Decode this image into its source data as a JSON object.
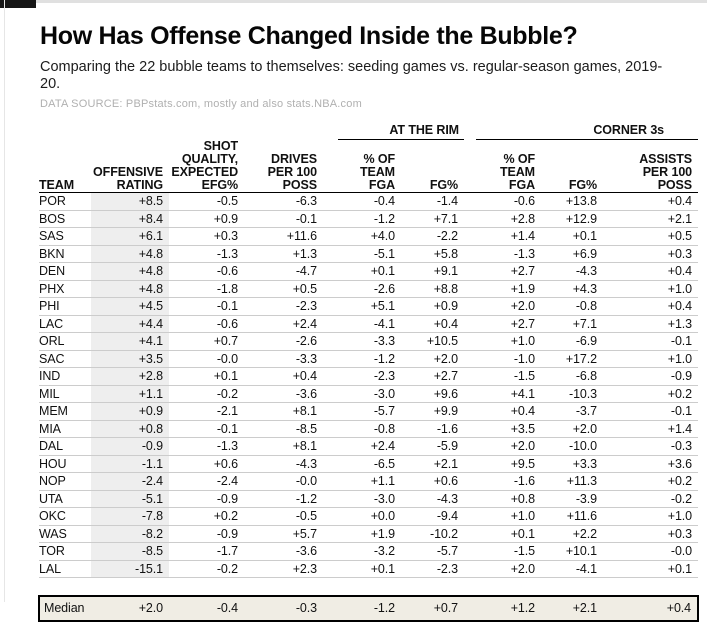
{
  "page": {
    "title": "How Has Offense Changed Inside the Bubble?",
    "subtitle": "Comparing the 22 bubble teams to themselves: seeding games vs. regular-season games, 2019-20.",
    "source": "DATA SOURCE: PBPstats.com, mostly and also stats.NBA.com"
  },
  "colors": {
    "shaded_column_bg": "#eeeeee",
    "median_row_bg": "#f0ede4",
    "row_divider": "#cccccc",
    "header_rule": "#000000",
    "source_text_gray": "#b0b0b0"
  },
  "chart_data": {
    "type": "table",
    "title": "How Has Offense Changed Inside the Bubble?",
    "group_headers": [
      {
        "label": "AT THE RIM",
        "span": [
          5,
          6
        ]
      },
      {
        "label": "CORNER 3s",
        "span": [
          7,
          9
        ]
      }
    ],
    "columns": [
      {
        "id": "team",
        "header_lines": [
          "TEAM"
        ],
        "align": "left"
      },
      {
        "id": "offensive-rating",
        "header_lines": [
          "OFFENSIVE",
          "RATING"
        ],
        "align": "right",
        "shaded": true
      },
      {
        "id": "shot-quality-expected-efg-pct",
        "header_lines": [
          "SHOT",
          "QUALITY,",
          "EXPECTED",
          "EFG%"
        ],
        "align": "right"
      },
      {
        "id": "drives-per-100-poss",
        "header_lines": [
          "DRIVES",
          "PER 100",
          "POSS"
        ],
        "align": "right"
      },
      {
        "id": "rim-pct-of-team-fga",
        "header_lines": [
          "% OF",
          "TEAM",
          "FGA"
        ],
        "align": "right"
      },
      {
        "id": "rim-fg-pct",
        "header_lines": [
          "FG%"
        ],
        "align": "right"
      },
      {
        "id": "corner-pct-of-team-fga",
        "header_lines": [
          "% OF",
          "TEAM",
          "FGA"
        ],
        "align": "right"
      },
      {
        "id": "corner-fg-pct",
        "header_lines": [
          "FG%"
        ],
        "align": "right"
      },
      {
        "id": "assists-per-100-poss",
        "header_lines": [
          "ASSISTS",
          "PER 100",
          "POSS"
        ],
        "align": "right"
      }
    ],
    "rows": [
      [
        "POR",
        "+8.5",
        "-0.5",
        "-6.3",
        "-0.4",
        "-1.4",
        "-0.6",
        "+13.8",
        "+0.4"
      ],
      [
        "BOS",
        "+8.4",
        "+0.9",
        "-0.1",
        "-1.2",
        "+7.1",
        "+2.8",
        "+12.9",
        "+2.1"
      ],
      [
        "SAS",
        "+6.1",
        "+0.3",
        "+11.6",
        "+4.0",
        "-2.2",
        "+1.4",
        "+0.1",
        "+0.5"
      ],
      [
        "BKN",
        "+4.8",
        "-1.3",
        "+1.3",
        "-5.1",
        "+5.8",
        "-1.3",
        "+6.9",
        "+0.3"
      ],
      [
        "DEN",
        "+4.8",
        "-0.6",
        "-4.7",
        "+0.1",
        "+9.1",
        "+2.7",
        "-4.3",
        "+0.4"
      ],
      [
        "PHX",
        "+4.8",
        "-1.8",
        "+0.5",
        "-2.6",
        "+8.8",
        "+1.9",
        "+4.3",
        "+1.0"
      ],
      [
        "PHI",
        "+4.5",
        "-0.1",
        "-2.3",
        "+5.1",
        "+0.9",
        "+2.0",
        "-0.8",
        "+0.4"
      ],
      [
        "LAC",
        "+4.4",
        "-0.6",
        "+2.4",
        "-4.1",
        "+0.4",
        "+2.7",
        "+7.1",
        "+1.3"
      ],
      [
        "ORL",
        "+4.1",
        "+0.7",
        "-2.6",
        "-3.3",
        "+10.5",
        "+1.0",
        "-6.9",
        "-0.1"
      ],
      [
        "SAC",
        "+3.5",
        "-0.0",
        "-3.3",
        "-1.2",
        "+2.0",
        "-1.0",
        "+17.2",
        "+1.0"
      ],
      [
        "IND",
        "+2.8",
        "+0.1",
        "+0.4",
        "-2.3",
        "+2.7",
        "-1.5",
        "-6.8",
        "-0.9"
      ],
      [
        "MIL",
        "+1.1",
        "-0.2",
        "-3.6",
        "-3.0",
        "+9.6",
        "+4.1",
        "-10.3",
        "+0.2"
      ],
      [
        "MEM",
        "+0.9",
        "-2.1",
        "+8.1",
        "-5.7",
        "+9.9",
        "+0.4",
        "-3.7",
        "-0.1"
      ],
      [
        "MIA",
        "+0.8",
        "-0.1",
        "-8.5",
        "-0.8",
        "-1.6",
        "+3.5",
        "+2.0",
        "+1.4"
      ],
      [
        "DAL",
        "-0.9",
        "-1.3",
        "+8.1",
        "+2.4",
        "-5.9",
        "+2.0",
        "-10.0",
        "-0.3"
      ],
      [
        "HOU",
        "-1.1",
        "+0.6",
        "-4.3",
        "-6.5",
        "+2.1",
        "+9.5",
        "+3.3",
        "+3.6"
      ],
      [
        "NOP",
        "-2.4",
        "-2.4",
        "-0.0",
        "+1.1",
        "+0.6",
        "-1.6",
        "+11.3",
        "+0.2"
      ],
      [
        "UTA",
        "-5.1",
        "-0.9",
        "-1.2",
        "-3.0",
        "-4.3",
        "+0.8",
        "-3.9",
        "-0.2"
      ],
      [
        "OKC",
        "-7.8",
        "+0.2",
        "-0.5",
        "+0.0",
        "-9.4",
        "+1.0",
        "+11.6",
        "+1.0"
      ],
      [
        "WAS",
        "-8.2",
        "-0.9",
        "+5.7",
        "+1.9",
        "-10.2",
        "+0.1",
        "+2.2",
        "+0.3"
      ],
      [
        "TOR",
        "-8.5",
        "-1.7",
        "-3.6",
        "-3.2",
        "-5.7",
        "-1.5",
        "+10.1",
        "-0.0"
      ],
      [
        "LAL",
        "-15.1",
        "-0.2",
        "+2.3",
        "+0.1",
        "-2.3",
        "+2.0",
        "-4.1",
        "+0.1"
      ]
    ],
    "median_row": [
      "Median",
      "+2.0",
      "-0.4",
      "-0.3",
      "-1.2",
      "+0.7",
      "+1.2",
      "+2.1",
      "+0.4"
    ]
  }
}
